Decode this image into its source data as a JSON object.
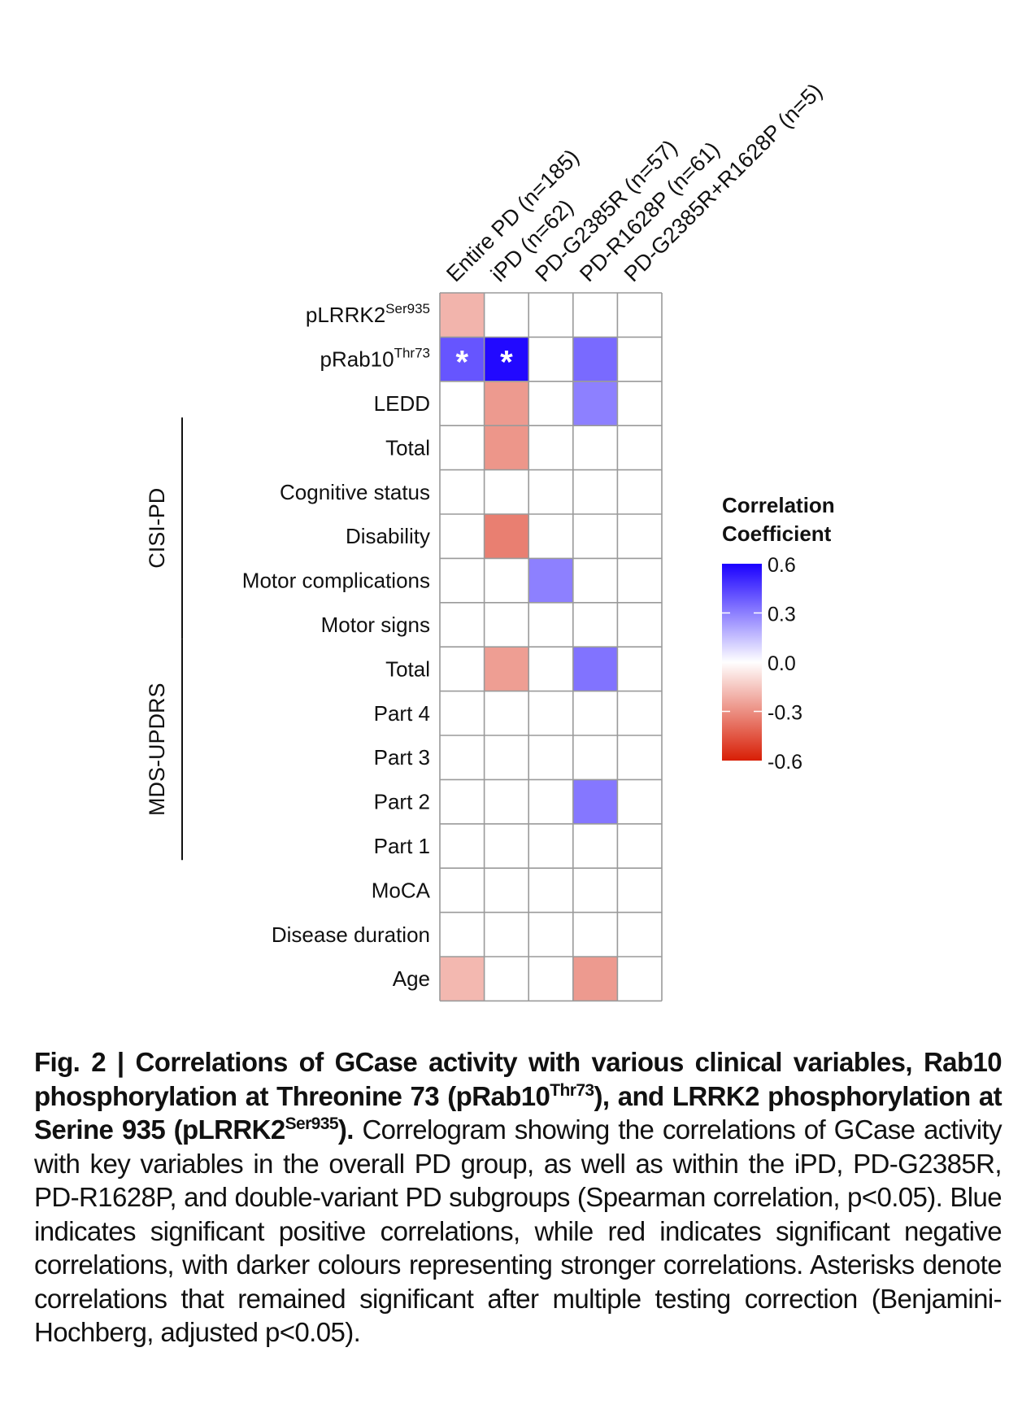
{
  "chart_data": {
    "type": "heatmap",
    "title": "",
    "columns": [
      "Entire PD (n=185)",
      "iPD (n=62)",
      "PD-G2385R (n=57)",
      "PD-R1628P (n=61)",
      "PD-G2385R+R1628P (n=5)"
    ],
    "rows": [
      {
        "label": "pLRRK2",
        "sup": "Ser935",
        "group": null
      },
      {
        "label": "pRab10",
        "sup": "Thr73",
        "group": null
      },
      {
        "label": "LEDD",
        "sup": "",
        "group": null
      },
      {
        "label": "Total",
        "sup": "",
        "group": "CISI-PD"
      },
      {
        "label": "Cognitive status",
        "sup": "",
        "group": "CISI-PD"
      },
      {
        "label": "Disability",
        "sup": "",
        "group": "CISI-PD"
      },
      {
        "label": "Motor complications",
        "sup": "",
        "group": "CISI-PD"
      },
      {
        "label": "Motor signs",
        "sup": "",
        "group": "CISI-PD"
      },
      {
        "label": "Total",
        "sup": "",
        "group": "MDS-UPDRS"
      },
      {
        "label": "Part 4",
        "sup": "",
        "group": "MDS-UPDRS"
      },
      {
        "label": "Part 3",
        "sup": "",
        "group": "MDS-UPDRS"
      },
      {
        "label": "Part 2",
        "sup": "",
        "group": "MDS-UPDRS"
      },
      {
        "label": "Part 1",
        "sup": "",
        "group": "MDS-UPDRS"
      },
      {
        "label": "MoCA",
        "sup": "",
        "group": null
      },
      {
        "label": "Disease duration",
        "sup": "",
        "group": null
      },
      {
        "label": "Age",
        "sup": "",
        "group": null
      }
    ],
    "groups": [
      {
        "name": "CISI-PD",
        "from_row": 3,
        "to_row": 7
      },
      {
        "name": "MDS-UPDRS",
        "from_row": 8,
        "to_row": 12
      }
    ],
    "values": [
      [
        -0.2,
        null,
        null,
        null,
        null
      ],
      [
        0.4,
        0.58,
        null,
        0.35,
        null
      ],
      [
        null,
        -0.27,
        null,
        0.3,
        null
      ],
      [
        null,
        -0.28,
        null,
        null,
        null
      ],
      [
        null,
        null,
        null,
        null,
        null
      ],
      [
        null,
        -0.34,
        null,
        null,
        null
      ],
      [
        null,
        null,
        0.3,
        null,
        null
      ],
      [
        null,
        null,
        null,
        null,
        null
      ],
      [
        null,
        -0.26,
        null,
        0.33,
        null
      ],
      [
        null,
        null,
        null,
        null,
        null
      ],
      [
        null,
        null,
        null,
        null,
        null
      ],
      [
        null,
        null,
        null,
        0.32,
        null
      ],
      [
        null,
        null,
        null,
        null,
        null
      ],
      [
        null,
        null,
        null,
        null,
        null
      ],
      [
        null,
        null,
        null,
        null,
        null
      ],
      [
        -0.19,
        null,
        null,
        -0.27,
        null
      ]
    ],
    "significant_after_correction": [
      {
        "row": 1,
        "col": 0
      },
      {
        "row": 1,
        "col": 1
      }
    ],
    "asterisk_symbol": "*",
    "legend": {
      "title_lines": [
        "Correlation",
        "Coefficient"
      ],
      "ticks": [
        0.6,
        0.3,
        0.0,
        -0.3,
        -0.6
      ],
      "tick_labels": [
        "0.6",
        "0.3",
        "0.0",
        "-0.3",
        "-0.6"
      ],
      "range": [
        -0.6,
        0.6
      ],
      "placement": "right"
    },
    "colors": {
      "positive": "#1a00ff",
      "neutral": "#ffffff",
      "negative": "#d81e05",
      "grid": "#9a9a9a"
    }
  },
  "caption": {
    "fig_label": "Fig. 2 | ",
    "bold_1": "Correlations of GCase activity with various clinical variables, Rab10 phosphorylation at Threonine 73 (pRab10",
    "bold_sup_1": "Thr73",
    "bold_2": "), and LRRK2 phosphorylation at Serine 935 (pLRRK2",
    "bold_sup_2": "Ser935",
    "bold_3": ").",
    "body": " Correlogram showing the correlations of GCase activity with key variables in the overall PD group, as well as within the iPD, PD-G2385R, PD-R1628P, and double-variant PD subgroups (Spearman correlation, p<0.05). Blue indicates significant positive correlations, while red indicates significant negative correlations, with darker colours representing stronger correlations. Asterisks denote correlations that remained significant after multiple testing correction (Benjamini-Hochberg, adjusted p<0.05)."
  }
}
